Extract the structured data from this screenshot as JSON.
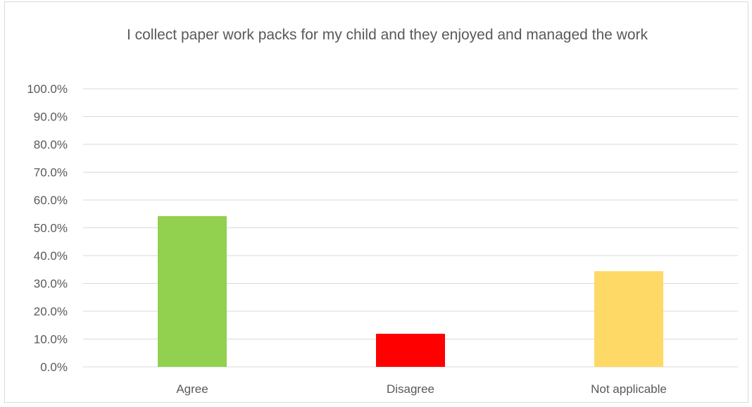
{
  "chart_data": {
    "type": "bar",
    "title": "I collect paper work packs for my child and they enjoyed and managed the work",
    "categories": [
      "Agree",
      "Disagree",
      "Not applicable"
    ],
    "values": [
      54.2,
      11.9,
      34.4
    ],
    "colors": [
      "#92d050",
      "#ff0000",
      "#ffd966"
    ],
    "ylim": [
      0,
      100
    ],
    "yticks": [
      "0.0%",
      "10.0%",
      "20.0%",
      "30.0%",
      "40.0%",
      "50.0%",
      "60.0%",
      "70.0%",
      "80.0%",
      "90.0%",
      "100.0%"
    ],
    "grid": true,
    "legend": "none"
  }
}
